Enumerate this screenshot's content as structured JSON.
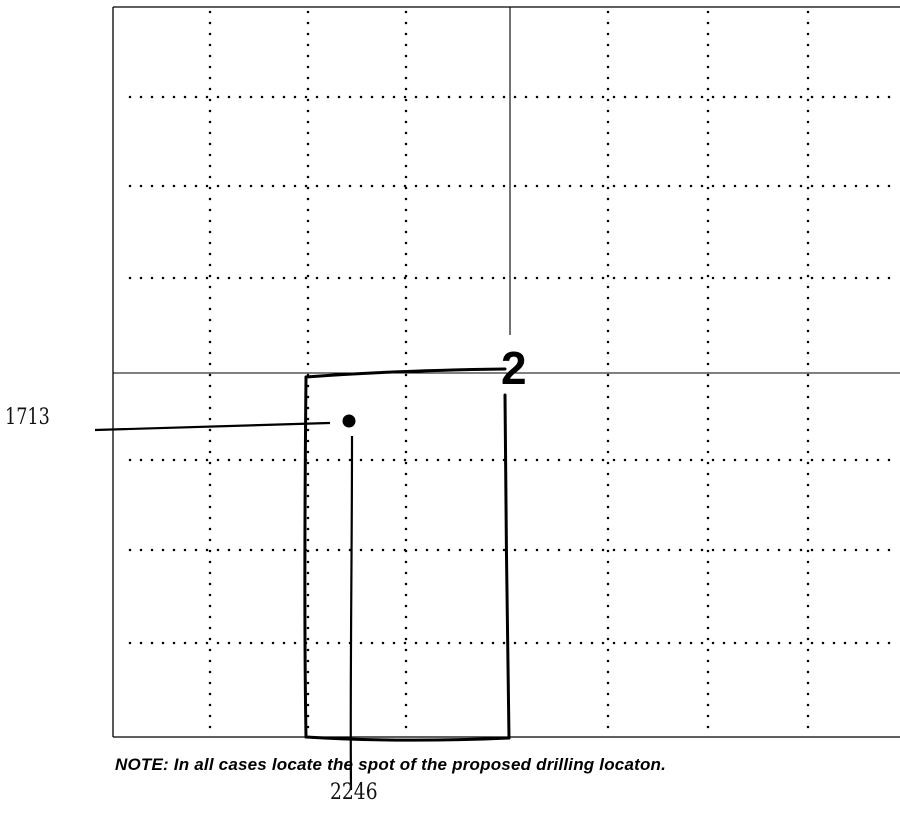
{
  "plat": {
    "section_number": "2",
    "north_south_distance": "1713",
    "east_west_distance": "2246",
    "note": "NOTE: In all cases locate the spot of the proposed drilling locaton."
  },
  "colors": {
    "ink": "#000000",
    "background": "#ffffff",
    "grid_dots": "#000000"
  }
}
